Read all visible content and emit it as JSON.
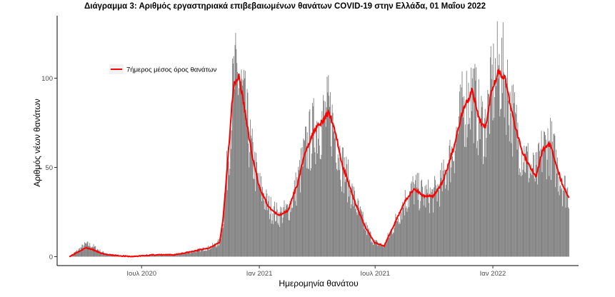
{
  "chart_data": {
    "type": "bar",
    "title": "Διάγραμμα 3: Αριθμός εργαστηριακά επιβεβαιωμένων θανάτων COVID-19 στην Ελλάδα, 01 Μαΐου 2022",
    "xlabel": "Ημερομηνία θανάτου",
    "ylabel": "Αριθμός νέων θανάτων",
    "x_ticks": [
      {
        "date": "2020-07-01",
        "label": "Ιουλ 2020"
      },
      {
        "date": "2021-01-01",
        "label": "Ιαν 2021"
      },
      {
        "date": "2021-07-01",
        "label": "Ιουλ 2021"
      },
      {
        "date": "2022-01-01",
        "label": "Ιαν 2022"
      }
    ],
    "y_ticks": [
      0,
      50,
      100
    ],
    "ylim": [
      -5,
      135
    ],
    "xlim": [
      "2020-02-20",
      "2022-05-15"
    ],
    "grid": false,
    "legend": {
      "position": "top-left",
      "label": "7ήμερος μέσος όρος θανάτων"
    },
    "colors": {
      "bars": "#808080",
      "line": "#ff0000"
    },
    "series": [
      {
        "type": "bar",
        "name": "",
        "anchors": [
          [
            "2020-03-10",
            0
          ],
          [
            "2020-03-25",
            4
          ],
          [
            "2020-04-05",
            7
          ],
          [
            "2020-04-15",
            6
          ],
          [
            "2020-04-28",
            3
          ],
          [
            "2020-05-10",
            1
          ],
          [
            "2020-06-15",
            0
          ],
          [
            "2020-07-20",
            1
          ],
          [
            "2020-08-20",
            1
          ],
          [
            "2020-09-20",
            3
          ],
          [
            "2020-10-15",
            5
          ],
          [
            "2020-10-31",
            8
          ],
          [
            "2020-11-05",
            20
          ],
          [
            "2020-11-12",
            50
          ],
          [
            "2020-11-18",
            80
          ],
          [
            "2020-11-22",
            97
          ],
          [
            "2020-11-30",
            100
          ],
          [
            "2020-12-08",
            85
          ],
          [
            "2020-12-20",
            58
          ],
          [
            "2020-12-31",
            40
          ],
          [
            "2021-01-15",
            28
          ],
          [
            "2021-01-31",
            23
          ],
          [
            "2021-02-15",
            26
          ],
          [
            "2021-03-01",
            40
          ],
          [
            "2021-03-15",
            60
          ],
          [
            "2021-03-31",
            73
          ],
          [
            "2021-04-10",
            76
          ],
          [
            "2021-04-20",
            80
          ],
          [
            "2021-04-30",
            70
          ],
          [
            "2021-05-10",
            52
          ],
          [
            "2021-05-20",
            42
          ],
          [
            "2021-05-31",
            30
          ],
          [
            "2021-06-15",
            17
          ],
          [
            "2021-06-30",
            8
          ],
          [
            "2021-07-15",
            6
          ],
          [
            "2021-07-31",
            18
          ],
          [
            "2021-08-15",
            30
          ],
          [
            "2021-08-31",
            38
          ],
          [
            "2021-09-15",
            34
          ],
          [
            "2021-09-30",
            34
          ],
          [
            "2021-10-15",
            42
          ],
          [
            "2021-10-31",
            60
          ],
          [
            "2021-11-15",
            82
          ],
          [
            "2021-11-30",
            93
          ],
          [
            "2021-12-10",
            77
          ],
          [
            "2021-12-20",
            72
          ],
          [
            "2021-12-31",
            95
          ],
          [
            "2022-01-10",
            104
          ],
          [
            "2022-01-20",
            100
          ],
          [
            "2022-01-31",
            80
          ],
          [
            "2022-02-15",
            60
          ],
          [
            "2022-02-28",
            50
          ],
          [
            "2022-03-10",
            45
          ],
          [
            "2022-03-20",
            60
          ],
          [
            "2022-03-31",
            63
          ],
          [
            "2022-04-10",
            52
          ],
          [
            "2022-04-20",
            40
          ],
          [
            "2022-04-30",
            35
          ]
        ]
      },
      {
        "type": "line",
        "name": "7ήμερος μέσος όρος θανάτων",
        "anchors": [
          [
            "2020-03-10",
            0
          ],
          [
            "2020-03-25",
            3
          ],
          [
            "2020-04-05",
            5
          ],
          [
            "2020-04-15",
            4
          ],
          [
            "2020-04-28",
            2
          ],
          [
            "2020-05-10",
            1
          ],
          [
            "2020-06-15",
            0
          ],
          [
            "2020-07-20",
            1
          ],
          [
            "2020-08-20",
            1
          ],
          [
            "2020-09-20",
            3
          ],
          [
            "2020-10-15",
            5
          ],
          [
            "2020-10-31",
            8
          ],
          [
            "2020-11-05",
            20
          ],
          [
            "2020-11-12",
            50
          ],
          [
            "2020-11-18",
            80
          ],
          [
            "2020-11-22",
            97
          ],
          [
            "2020-11-30",
            101
          ],
          [
            "2020-12-08",
            85
          ],
          [
            "2020-12-20",
            58
          ],
          [
            "2020-12-31",
            40
          ],
          [
            "2021-01-15",
            28
          ],
          [
            "2021-01-31",
            23
          ],
          [
            "2021-02-15",
            26
          ],
          [
            "2021-03-01",
            40
          ],
          [
            "2021-03-15",
            60
          ],
          [
            "2021-03-31",
            73
          ],
          [
            "2021-04-10",
            76
          ],
          [
            "2021-04-20",
            81
          ],
          [
            "2021-04-30",
            70
          ],
          [
            "2021-05-10",
            52
          ],
          [
            "2021-05-20",
            42
          ],
          [
            "2021-05-31",
            30
          ],
          [
            "2021-06-15",
            17
          ],
          [
            "2021-06-30",
            8
          ],
          [
            "2021-07-15",
            6
          ],
          [
            "2021-07-31",
            18
          ],
          [
            "2021-08-15",
            30
          ],
          [
            "2021-08-31",
            38
          ],
          [
            "2021-09-15",
            34
          ],
          [
            "2021-09-30",
            34
          ],
          [
            "2021-10-15",
            42
          ],
          [
            "2021-10-31",
            60
          ],
          [
            "2021-11-15",
            82
          ],
          [
            "2021-11-30",
            93
          ],
          [
            "2021-12-10",
            77
          ],
          [
            "2021-12-20",
            72
          ],
          [
            "2021-12-31",
            95
          ],
          [
            "2022-01-10",
            104
          ],
          [
            "2022-01-20",
            100
          ],
          [
            "2022-01-31",
            80
          ],
          [
            "2022-02-15",
            60
          ],
          [
            "2022-02-28",
            50
          ],
          [
            "2022-03-10",
            45
          ],
          [
            "2022-03-20",
            60
          ],
          [
            "2022-03-31",
            63
          ],
          [
            "2022-04-10",
            52
          ],
          [
            "2022-04-20",
            40
          ],
          [
            "2022-04-30",
            33
          ]
        ]
      }
    ]
  }
}
